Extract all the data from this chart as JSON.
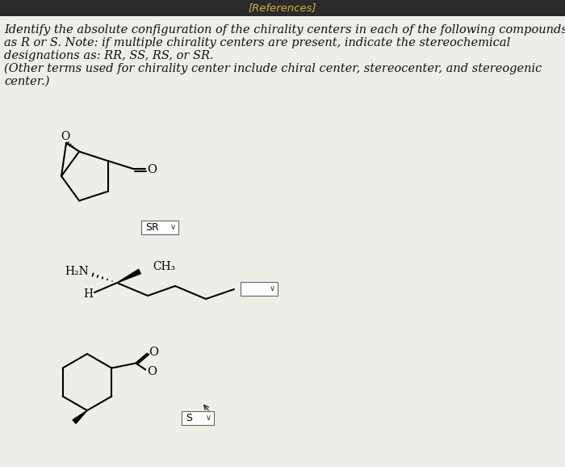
{
  "background_color": "#e8e8e8",
  "header_bg": "#2a2a2a",
  "header_text": "[References]",
  "header_text_color": "#d4af37",
  "content_bg": "#eeede8",
  "body_text_lines": [
    "Identify the absolute configuration of the chirality centers in each of the following compounds",
    "as R or S. Note: if multiple chirality centers are present, indicate the stereochemical",
    "designations as: RR, SS, RS, or SR.",
    "(Other terms used for chirality center include chiral center, stereocenter, and stereogenic",
    "center.)"
  ],
  "dropdown1_label": "SR",
  "dropdown2_label": "",
  "dropdown3_label": "S",
  "text_color": "#111111",
  "body_fontsize": 10.5,
  "dropdown_color": "#ffffff",
  "dropdown_border": "#888888"
}
